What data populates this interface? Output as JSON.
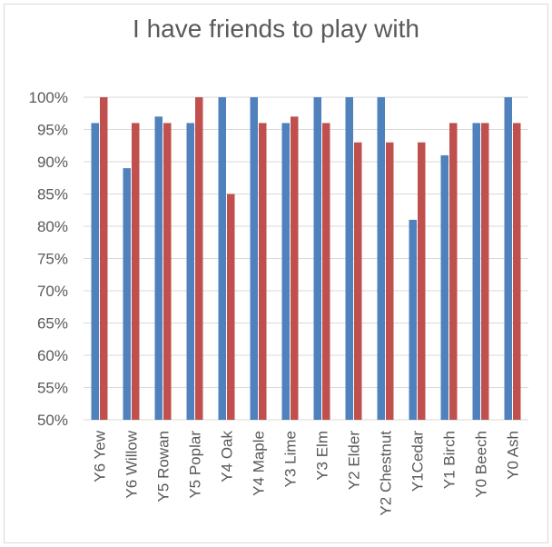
{
  "chart_data": {
    "type": "bar",
    "title": "I have friends to play with",
    "categories": [
      "Y6 Yew",
      "Y6 Willow",
      "Y5 Rowan",
      "Y5 Poplar",
      "Y4 Oak",
      "Y4 Maple",
      "Y3 Lime",
      "Y3 Elm",
      "Y2 Elder",
      "Y2 Chestnut",
      "Y1Cedar",
      "Y1 Birch",
      "Y0 Beech",
      "Y0 Ash"
    ],
    "series": [
      {
        "values": [
          96,
          89,
          97,
          96,
          100,
          100,
          96,
          100,
          100,
          100,
          81,
          91,
          96,
          100
        ],
        "color": "#4f81bd"
      },
      {
        "values": [
          100,
          96,
          96,
          100,
          85,
          96,
          97,
          96,
          93,
          93,
          93,
          96,
          96,
          96
        ],
        "color": "#c0504d"
      }
    ],
    "ylim": [
      50,
      100
    ],
    "yticks": [
      50,
      55,
      60,
      65,
      70,
      75,
      80,
      85,
      90,
      95,
      100
    ],
    "ytick_labels": [
      "50%",
      "55%",
      "60%",
      "65%",
      "70%",
      "75%",
      "80%",
      "85%",
      "90%",
      "95%",
      "100%"
    ],
    "grid": true,
    "gridColor": "#d9d9d9",
    "axisColor": "#d9d9d9"
  }
}
